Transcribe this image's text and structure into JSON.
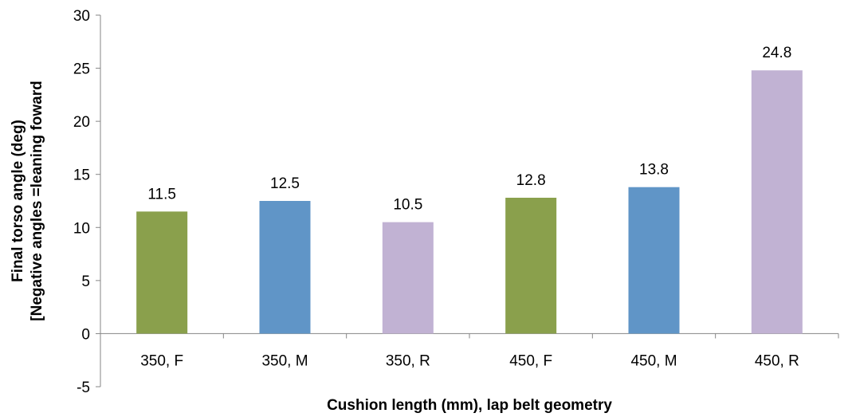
{
  "chart_data": {
    "type": "bar",
    "xlabel": "Cushion length (mm), lap belt geometry",
    "ylabel": "Final torso angle (deg)",
    "ylabel_line2": "[Negative angles =leaning foward",
    "ylim": [
      -5,
      30
    ],
    "yticks": [
      -5,
      0,
      5,
      10,
      15,
      20,
      25,
      30
    ],
    "grid": false,
    "categories": [
      "350, F",
      "350, M",
      "350, R",
      "450, F",
      "450, M",
      "450, R"
    ],
    "values": [
      11.5,
      12.5,
      10.5,
      12.8,
      13.8,
      24.8
    ],
    "data_labels": [
      "11.5",
      "12.5",
      "10.5",
      "12.8",
      "13.8",
      "24.8"
    ],
    "colors": [
      "#8aa04c",
      "#6095c7",
      "#c1b2d3",
      "#8aa04c",
      "#6095c7",
      "#c1b2d3"
    ]
  }
}
